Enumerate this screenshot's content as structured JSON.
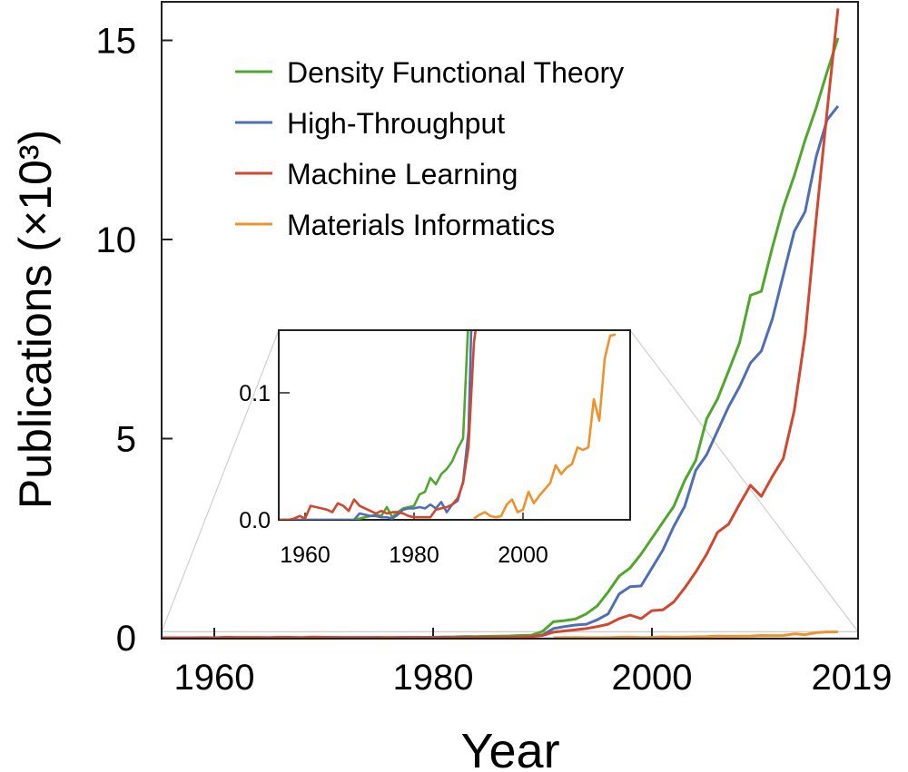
{
  "chart_data": {
    "type": "line",
    "xlabel": "Year",
    "ylabel": "Publications (×10³)",
    "xlim": [
      1955.2,
      2019
    ],
    "ylim": [
      0,
      16
    ],
    "xticks": [
      1960,
      1980,
      2000,
      2019
    ],
    "xtick_labels": [
      "1960",
      "1980",
      "2000",
      "2019"
    ],
    "yticks": [
      0,
      5,
      10,
      15
    ],
    "ytick_labels": [
      "0",
      "5",
      "10",
      "15"
    ],
    "legend_position": "top-left",
    "series": [
      {
        "name": "Density Functional Theory",
        "color": "#4fa82c",
        "start_year": 1955,
        "values": [
          0,
          0,
          0,
          0,
          0,
          0,
          0,
          0,
          0,
          0,
          0,
          0,
          0,
          0,
          0,
          0.001,
          0.002,
          0.003,
          0.004,
          0.003,
          0.01,
          0.002,
          0.006,
          0.009,
          0.01,
          0.011,
          0.02,
          0.022,
          0.033,
          0.028,
          0.036,
          0.04,
          0.046,
          0.056,
          0.064,
          0.16,
          0.4,
          0.43,
          0.47,
          0.6,
          0.8,
          1.15,
          1.55,
          1.75,
          2.1,
          2.5,
          2.9,
          3.3,
          3.95,
          4.45,
          5.5,
          6.0,
          6.7,
          7.4,
          8.6,
          8.7,
          9.8,
          10.8,
          11.6,
          12.5,
          13.3,
          14.2,
          15.06
        ]
      },
      {
        "name": "High-Throughput",
        "color": "#4f6fb5",
        "start_year": 1955,
        "values": [
          0,
          0,
          0,
          0,
          0,
          0,
          0,
          0,
          0,
          0,
          0,
          0,
          0,
          0,
          0,
          0.005,
          0.004,
          0.003,
          0.003,
          0.002,
          0.002,
          0.001,
          0.004,
          0.008,
          0.009,
          0.009,
          0.01,
          0.009,
          0.012,
          0.009,
          0.014,
          0.006,
          0.012,
          0.015,
          0.03,
          0.07,
          0.23,
          0.28,
          0.32,
          0.34,
          0.45,
          0.6,
          1.1,
          1.28,
          1.3,
          1.75,
          2.2,
          2.8,
          3.3,
          4.2,
          4.6,
          5.2,
          5.8,
          6.3,
          6.9,
          7.2,
          8.0,
          9.1,
          10.2,
          10.7,
          12.07,
          13.0,
          13.35
        ]
      },
      {
        "name": "Machine Learning",
        "color": "#d2472e",
        "start_year": 1955,
        "values": [
          0,
          0,
          0,
          0.001,
          0.003,
          0.001,
          0.011,
          0.01,
          0.009,
          0.008,
          0.006,
          0.013,
          0.011,
          0.007,
          0.016,
          0.011,
          0.009,
          0.007,
          0.005,
          0.007,
          0.005,
          0.006,
          0.006,
          0.005,
          0.003,
          0.002,
          0.002,
          0.002,
          0.002,
          0.008,
          0.009,
          0.01,
          0.012,
          0.017,
          0.029,
          0.057,
          0.14,
          0.17,
          0.2,
          0.23,
          0.28,
          0.34,
          0.48,
          0.57,
          0.48,
          0.68,
          0.7,
          0.9,
          1.25,
          1.65,
          2.1,
          2.65,
          2.85,
          3.35,
          3.83,
          3.55,
          4.05,
          4.5,
          5.7,
          7.6,
          10.5,
          13.2,
          15.8
        ]
      },
      {
        "name": "Materials Informatics",
        "color": "#f0922c",
        "start_year": 1991,
        "values": [
          0.001,
          0.004,
          0.006,
          0.003,
          0.002,
          0.003,
          0.012,
          0.016,
          0.006,
          0.008,
          0.022,
          0.013,
          0.019,
          0.024,
          0.029,
          0.043,
          0.036,
          0.041,
          0.044,
          0.057,
          0.055,
          0.057,
          0.095,
          0.078,
          0.127,
          0.145,
          0.146
        ]
      }
    ],
    "inset": {
      "xlim": [
        1955.2,
        2019.7
      ],
      "ylim": [
        0,
        0.15
      ],
      "xticks": [
        1960,
        1980,
        2000
      ],
      "xtick_labels": [
        "1960",
        "1980",
        "2000"
      ],
      "yticks": [
        0,
        0.1
      ],
      "ytick_labels": [
        "0.0",
        "0.1"
      ]
    }
  }
}
